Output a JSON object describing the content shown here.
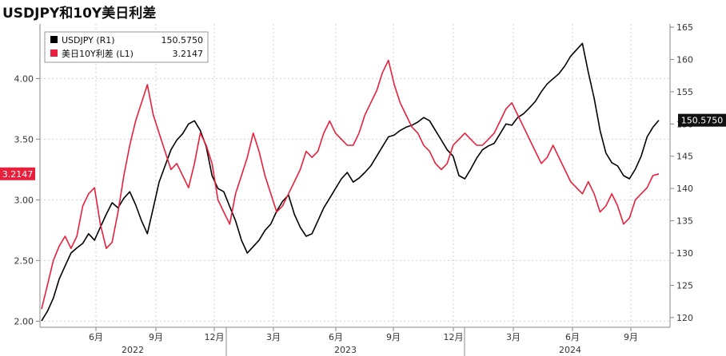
{
  "chart_data": {
    "type": "line",
    "title": "USDJPY和10Y美日利差",
    "x_month_labels": [
      "6月",
      "9月",
      "12月",
      "3月",
      "6月",
      "9月",
      "12月",
      "3月",
      "6月",
      "9月"
    ],
    "x_year_labels": [
      "2022",
      "2023",
      "2024"
    ],
    "left_axis": {
      "ticks": [
        "2.00",
        "2.50",
        "3.00",
        "3.50",
        "4.00"
      ],
      "ylim": [
        1.95,
        4.45
      ]
    },
    "right_axis": {
      "ticks": [
        "120",
        "125",
        "130",
        "135",
        "140",
        "145",
        "150",
        "155",
        "160",
        "165"
      ],
      "ylim": [
        118.5,
        165.5
      ]
    },
    "series": [
      {
        "name": "USDJPY (R1)",
        "axis": "right",
        "last_value": "150.5750",
        "color": "#000000",
        "values": [
          119.5,
          121,
          123,
          126,
          128,
          130,
          130.8,
          131.5,
          133,
          132,
          134,
          136,
          137.8,
          137,
          138.5,
          139.5,
          137.5,
          135,
          133,
          137,
          141,
          143.5,
          146,
          147.5,
          148.5,
          150,
          150.5,
          149,
          146.5,
          142,
          140,
          139.5,
          137.2,
          135,
          132,
          130,
          131,
          132,
          133.5,
          134.5,
          136.5,
          138,
          139,
          136,
          134,
          132.6,
          133,
          135,
          137,
          138.5,
          140,
          141.5,
          142.5,
          141,
          141.6,
          142.5,
          143.5,
          145,
          146.5,
          148,
          148.3,
          149,
          149.5,
          149.8,
          150.3,
          151,
          150.5,
          149,
          147.5,
          146,
          145,
          142,
          141.5,
          143,
          144.7,
          146,
          146.6,
          147,
          148.5,
          150,
          149.8,
          151,
          151.6,
          152.5,
          153.5,
          155,
          156.2,
          157,
          157.8,
          159,
          160.5,
          161.5,
          162.5,
          158,
          154,
          149,
          145.5,
          144,
          143.5,
          142,
          141.5,
          143,
          145,
          148,
          149.5,
          150.58
        ]
      },
      {
        "name": "美日10Y利差 (L1)",
        "axis": "left",
        "last_value": "3.2147",
        "color": "#e8203c",
        "values": [
          2.1,
          2.3,
          2.5,
          2.62,
          2.7,
          2.6,
          2.7,
          2.95,
          3.05,
          3.1,
          2.8,
          2.6,
          2.65,
          2.9,
          3.2,
          3.45,
          3.65,
          3.8,
          3.95,
          3.7,
          3.55,
          3.4,
          3.25,
          3.3,
          3.2,
          3.1,
          3.3,
          3.55,
          3.45,
          3.3,
          3.0,
          2.9,
          2.8,
          3.05,
          3.2,
          3.35,
          3.55,
          3.4,
          3.2,
          3.05,
          2.9,
          2.95,
          3.05,
          3.15,
          3.25,
          3.4,
          3.35,
          3.4,
          3.55,
          3.65,
          3.55,
          3.5,
          3.45,
          3.45,
          3.55,
          3.7,
          3.8,
          3.9,
          4.05,
          4.15,
          3.95,
          3.8,
          3.7,
          3.6,
          3.55,
          3.45,
          3.4,
          3.3,
          3.25,
          3.3,
          3.45,
          3.5,
          3.55,
          3.5,
          3.45,
          3.45,
          3.5,
          3.55,
          3.65,
          3.75,
          3.8,
          3.7,
          3.6,
          3.5,
          3.4,
          3.3,
          3.35,
          3.45,
          3.35,
          3.25,
          3.15,
          3.1,
          3.05,
          3.15,
          3.05,
          2.9,
          2.95,
          3.05,
          2.95,
          2.8,
          2.85,
          3.0,
          3.05,
          3.1,
          3.2,
          3.2147
        ]
      }
    ]
  }
}
